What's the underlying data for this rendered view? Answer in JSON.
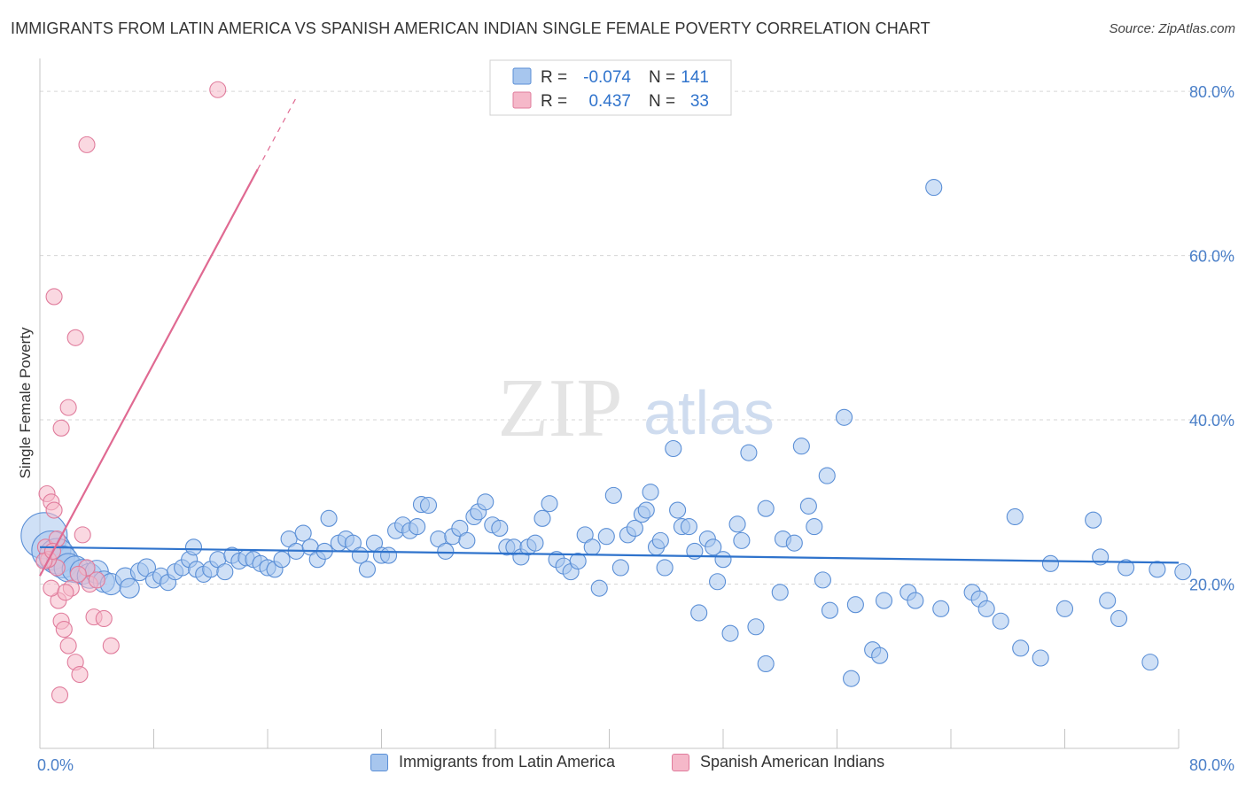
{
  "title": "IMMIGRANTS FROM LATIN AMERICA VS SPANISH AMERICAN INDIAN SINGLE FEMALE POVERTY CORRELATION CHART",
  "source": "Source: ZipAtlas.com",
  "watermark": {
    "zip": "ZIP",
    "atlas": "atlas"
  },
  "colors": {
    "blue_fill": "#a7c6ee",
    "blue_stroke": "#5b8fd6",
    "blue_line": "#2f73cc",
    "pink_fill": "#f5b8c9",
    "pink_stroke": "#e07c9c",
    "pink_line": "#e06a92",
    "axis_label": "#4a7fc8",
    "grid": "#d6d6d6"
  },
  "stats": {
    "r_label": "R =",
    "n_label": "N =",
    "rows": [
      {
        "r": "-0.074",
        "n": "141",
        "color": "blue"
      },
      {
        "r": "0.437",
        "n": "33",
        "color": "pink"
      }
    ]
  },
  "chart_data": {
    "type": "scatter",
    "xlabel": "",
    "ylabel": "Single Female Poverty",
    "xlim": [
      0,
      80
    ],
    "ylim": [
      0,
      84
    ],
    "x_tick_labels": [
      {
        "value": 0,
        "label": "0.0%"
      },
      {
        "value": 80,
        "label": "80.0%"
      }
    ],
    "y_tick_labels": [
      {
        "value": 20,
        "label": "20.0%"
      },
      {
        "value": 40,
        "label": "40.0%"
      },
      {
        "value": 60,
        "label": "60.0%"
      },
      {
        "value": 80,
        "label": "80.0%"
      }
    ],
    "grid": true,
    "legend_position": "bottom-center",
    "series": [
      {
        "name": "Immigrants from Latin America",
        "color": "blue",
        "trend": {
          "x": [
            0,
            80
          ],
          "y": [
            24.5,
            22.6
          ]
        },
        "points": [
          [
            0.3,
            25.9,
            26
          ],
          [
            0.8,
            24.1,
            22
          ],
          [
            1.2,
            23.4,
            20
          ],
          [
            1.6,
            22.7,
            18
          ],
          [
            2.0,
            22.0,
            16
          ],
          [
            2.5,
            21.8,
            15
          ],
          [
            3.0,
            21.5,
            14
          ],
          [
            3.5,
            21.0,
            14
          ],
          [
            4.0,
            21.5,
            13
          ],
          [
            4.5,
            20.3,
            12
          ],
          [
            5.0,
            20.0,
            12
          ],
          [
            6.0,
            20.8,
            11
          ],
          [
            6.3,
            19.5,
            11
          ],
          [
            7.0,
            21.5,
            10
          ],
          [
            7.5,
            22.0,
            10
          ],
          [
            8.0,
            20.5,
            9
          ],
          [
            8.5,
            21.0,
            9
          ],
          [
            9.0,
            20.2,
            9
          ],
          [
            9.5,
            21.5,
            9
          ],
          [
            10.0,
            22.0,
            9
          ],
          [
            10.5,
            23.0,
            9
          ],
          [
            10.8,
            24.5,
            9
          ],
          [
            11.0,
            21.8,
            9
          ],
          [
            11.5,
            21.2,
            9
          ],
          [
            12.0,
            21.8,
            9
          ],
          [
            12.5,
            23.0,
            9
          ],
          [
            13.0,
            21.5,
            9
          ],
          [
            13.5,
            23.5,
            9
          ],
          [
            14.0,
            22.8,
            9
          ],
          [
            14.5,
            23.2,
            9
          ],
          [
            15.0,
            23.0,
            9
          ],
          [
            15.5,
            22.5,
            9
          ],
          [
            16.0,
            22.0,
            9
          ],
          [
            16.5,
            21.8,
            9
          ],
          [
            17.0,
            23.0,
            9
          ],
          [
            17.5,
            25.5,
            9
          ],
          [
            18.0,
            24.0,
            9
          ],
          [
            18.5,
            26.2,
            9
          ],
          [
            19.0,
            24.5,
            9
          ],
          [
            19.5,
            23.0,
            9
          ],
          [
            20.0,
            24.0,
            9
          ],
          [
            20.3,
            28.0,
            9
          ],
          [
            21.0,
            25.0,
            9
          ],
          [
            21.5,
            25.5,
            9
          ],
          [
            22.0,
            25.0,
            9
          ],
          [
            22.5,
            23.5,
            9
          ],
          [
            23.0,
            21.8,
            9
          ],
          [
            23.5,
            25.0,
            9
          ],
          [
            24.0,
            23.5,
            9
          ],
          [
            24.5,
            23.5,
            9
          ],
          [
            25.0,
            26.5,
            9
          ],
          [
            25.5,
            27.2,
            9
          ],
          [
            26.0,
            26.5,
            9
          ],
          [
            26.5,
            27.0,
            9
          ],
          [
            26.8,
            29.7,
            9
          ],
          [
            27.3,
            29.6,
            9
          ],
          [
            28.0,
            25.5,
            9
          ],
          [
            28.5,
            24.0,
            9
          ],
          [
            29.0,
            25.8,
            9
          ],
          [
            29.5,
            26.8,
            9
          ],
          [
            30.0,
            25.3,
            9
          ],
          [
            30.5,
            28.2,
            9
          ],
          [
            30.8,
            28.8,
            9
          ],
          [
            31.3,
            30.0,
            9
          ],
          [
            31.8,
            27.2,
            9
          ],
          [
            32.3,
            26.8,
            9
          ],
          [
            32.8,
            24.5,
            9
          ],
          [
            33.3,
            24.5,
            9
          ],
          [
            33.8,
            23.3,
            9
          ],
          [
            34.3,
            24.5,
            9
          ],
          [
            34.8,
            25.0,
            9
          ],
          [
            35.3,
            28.0,
            9
          ],
          [
            35.8,
            29.8,
            9
          ],
          [
            36.3,
            23.0,
            9
          ],
          [
            36.8,
            22.2,
            9
          ],
          [
            37.3,
            21.5,
            9
          ],
          [
            37.8,
            22.8,
            9
          ],
          [
            38.3,
            26.0,
            9
          ],
          [
            38.8,
            24.5,
            9
          ],
          [
            39.3,
            19.5,
            9
          ],
          [
            39.8,
            25.8,
            9
          ],
          [
            40.3,
            30.8,
            9
          ],
          [
            40.8,
            22.0,
            9
          ],
          [
            41.3,
            26.0,
            9
          ],
          [
            41.8,
            26.8,
            9
          ],
          [
            42.3,
            28.5,
            9
          ],
          [
            42.6,
            29.0,
            9
          ],
          [
            42.9,
            31.2,
            9
          ],
          [
            43.3,
            24.5,
            9
          ],
          [
            43.6,
            25.3,
            9
          ],
          [
            43.9,
            22.0,
            9
          ],
          [
            44.5,
            36.5,
            9
          ],
          [
            44.8,
            29.0,
            9
          ],
          [
            45.1,
            27.0,
            9
          ],
          [
            45.6,
            27.0,
            9
          ],
          [
            46.0,
            24.0,
            9
          ],
          [
            46.3,
            16.5,
            9
          ],
          [
            46.9,
            25.5,
            9
          ],
          [
            47.3,
            24.5,
            9
          ],
          [
            47.6,
            20.3,
            9
          ],
          [
            48.0,
            23.0,
            9
          ],
          [
            48.5,
            14.0,
            9
          ],
          [
            49.0,
            27.3,
            9
          ],
          [
            49.3,
            25.3,
            9
          ],
          [
            49.8,
            36.0,
            9
          ],
          [
            50.3,
            14.8,
            9
          ],
          [
            51.0,
            29.2,
            9
          ],
          [
            51.0,
            10.3,
            9
          ],
          [
            52.0,
            19.0,
            9
          ],
          [
            52.2,
            25.5,
            9
          ],
          [
            53.0,
            25.0,
            9
          ],
          [
            53.5,
            36.8,
            9
          ],
          [
            54.0,
            29.5,
            9
          ],
          [
            54.4,
            27.0,
            9
          ],
          [
            55.0,
            20.5,
            9
          ],
          [
            55.3,
            33.2,
            9
          ],
          [
            55.5,
            16.8,
            9
          ],
          [
            56.5,
            40.3,
            9
          ],
          [
            57.0,
            8.5,
            9
          ],
          [
            57.3,
            17.5,
            9
          ],
          [
            58.5,
            12.0,
            9
          ],
          [
            59.0,
            11.3,
            9
          ],
          [
            59.3,
            18.0,
            9
          ],
          [
            61.0,
            19.0,
            9
          ],
          [
            61.5,
            18.0,
            9
          ],
          [
            62.8,
            68.3,
            9
          ],
          [
            63.3,
            17.0,
            9
          ],
          [
            65.5,
            19.0,
            9
          ],
          [
            66.0,
            18.2,
            9
          ],
          [
            66.5,
            17.0,
            9
          ],
          [
            67.5,
            15.5,
            9
          ],
          [
            68.5,
            28.2,
            9
          ],
          [
            68.9,
            12.2,
            9
          ],
          [
            70.3,
            11.0,
            9
          ],
          [
            71.0,
            22.5,
            9
          ],
          [
            72.0,
            17.0,
            9
          ],
          [
            74.0,
            27.8,
            9
          ],
          [
            74.5,
            23.3,
            9
          ],
          [
            75.0,
            18.0,
            9
          ],
          [
            75.8,
            15.8,
            9
          ],
          [
            76.3,
            22.0,
            9
          ],
          [
            78.0,
            10.5,
            9
          ],
          [
            78.5,
            21.8,
            9
          ],
          [
            80.3,
            21.5,
            9
          ]
        ]
      },
      {
        "name": "Spanish American Indians",
        "color": "pink",
        "trend": {
          "x": [
            0,
            15.3
          ],
          "y": [
            21.0,
            70.5
          ]
        },
        "trend_dashed": {
          "x": [
            15.3,
            18.0
          ],
          "y": [
            70.5,
            79.2
          ]
        },
        "points": [
          [
            0.5,
            31.0,
            9
          ],
          [
            0.8,
            30.0,
            9
          ],
          [
            1.0,
            29.0,
            9
          ],
          [
            1.2,
            22.0,
            9
          ],
          [
            1.3,
            18.0,
            9
          ],
          [
            1.5,
            15.5,
            9
          ],
          [
            1.7,
            14.5,
            9
          ],
          [
            2.0,
            12.5,
            9
          ],
          [
            2.2,
            19.5,
            9
          ],
          [
            2.5,
            10.5,
            9
          ],
          [
            2.8,
            9.0,
            9
          ],
          [
            3.0,
            26.0,
            9
          ],
          [
            3.3,
            22.0,
            9
          ],
          [
            3.5,
            20.0,
            9
          ],
          [
            3.8,
            16.0,
            9
          ],
          [
            4.5,
            15.8,
            9
          ],
          [
            5.0,
            12.5,
            9
          ],
          [
            1.5,
            39.0,
            9
          ],
          [
            2.0,
            41.5,
            9
          ],
          [
            1.0,
            55.0,
            9
          ],
          [
            2.5,
            50.0,
            9
          ],
          [
            0.4,
            24.5,
            9
          ],
          [
            0.6,
            23.0,
            9
          ],
          [
            0.8,
            19.5,
            9
          ],
          [
            1.2,
            25.5,
            9
          ],
          [
            1.8,
            19.0,
            9
          ],
          [
            2.7,
            21.2,
            9
          ],
          [
            4.0,
            20.5,
            9
          ],
          [
            1.4,
            6.5,
            9
          ],
          [
            3.3,
            73.5,
            9
          ],
          [
            12.5,
            80.2,
            9
          ],
          [
            0.3,
            22.8,
            9
          ],
          [
            0.9,
            24.0,
            9
          ]
        ]
      }
    ]
  }
}
